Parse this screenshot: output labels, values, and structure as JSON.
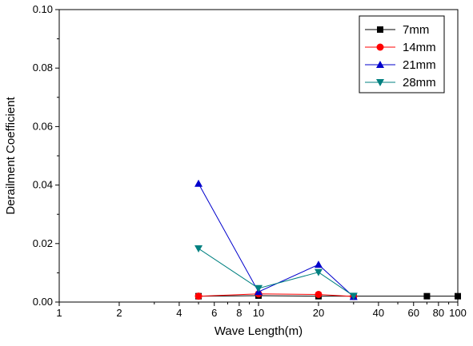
{
  "chart_data": {
    "type": "line",
    "title": "",
    "xlabel": "Wave Length(m)",
    "ylabel": "Derailment Coefficient",
    "xscale": "log",
    "xlim": [
      1,
      100
    ],
    "ylim": [
      0,
      0.1
    ],
    "x_ticks": [
      1,
      2,
      4,
      6,
      8,
      10,
      20,
      40,
      60,
      80,
      100
    ],
    "y_ticks": [
      0.0,
      0.02,
      0.04,
      0.06,
      0.08,
      0.1
    ],
    "y_tick_labels": [
      "0.00",
      "0.02",
      "0.04",
      "0.06",
      "0.08",
      "0.10"
    ],
    "grid": false,
    "legend_position": "top-right",
    "series": [
      {
        "name": "7mm",
        "color": "#000000",
        "marker": "square",
        "x": [
          5,
          10,
          20,
          30,
          70,
          100
        ],
        "y": [
          0.002,
          0.0022,
          0.002,
          0.002,
          0.002,
          0.002
        ]
      },
      {
        "name": "14mm",
        "color": "#ff0000",
        "marker": "circle",
        "x": [
          5,
          10,
          20,
          30
        ],
        "y": [
          0.002,
          0.0028,
          0.0026,
          0.0019
        ]
      },
      {
        "name": "21mm",
        "color": "#0000cc",
        "marker": "triangle-up",
        "x": [
          5,
          10,
          20,
          30
        ],
        "y": [
          0.0405,
          0.0035,
          0.0128,
          0.0018
        ]
      },
      {
        "name": "28mm",
        "color": "#008080",
        "marker": "triangle-down",
        "x": [
          5,
          10,
          20,
          30
        ],
        "y": [
          0.0183,
          0.0047,
          0.0102,
          0.0021
        ]
      }
    ]
  }
}
